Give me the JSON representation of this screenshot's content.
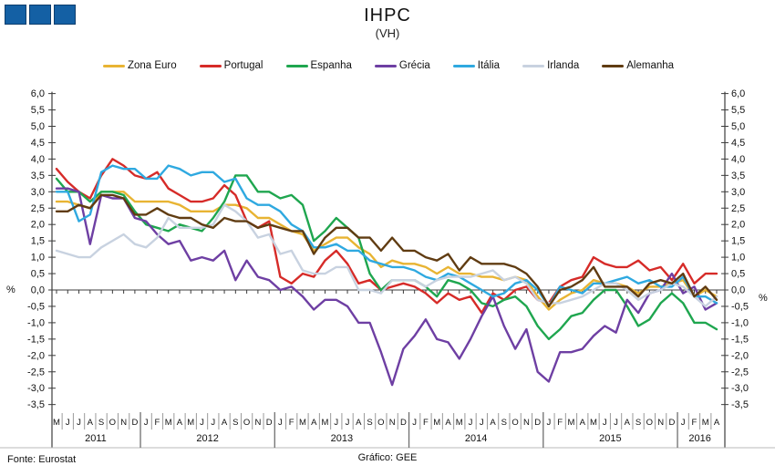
{
  "header": {
    "title": "IHPC",
    "subtitle": "(VH)"
  },
  "axis": {
    "unit_left": "%",
    "unit_right": "%"
  },
  "footer": {
    "source": "Fonte:  Eurostat",
    "credit": "Gráfico: GEE"
  },
  "chart_data": {
    "type": "line",
    "title": "IHPC",
    "subtitle": "(VH)",
    "ylabel": "%",
    "ylim": [
      -3.5,
      6.0
    ],
    "y_step": 0.5,
    "grid": "zero-line-only",
    "legend_position": "top",
    "x_unit": "month",
    "years": [
      {
        "label": "2011",
        "months": [
          "M",
          "J",
          "J",
          "A",
          "S",
          "O",
          "N",
          "D"
        ]
      },
      {
        "label": "2012",
        "months": [
          "J",
          "F",
          "M",
          "A",
          "M",
          "J",
          "J",
          "A",
          "S",
          "O",
          "N",
          "D"
        ]
      },
      {
        "label": "2013",
        "months": [
          "J",
          "F",
          "M",
          "A",
          "M",
          "J",
          "J",
          "A",
          "S",
          "O",
          "N",
          "D"
        ]
      },
      {
        "label": "2014",
        "months": [
          "J",
          "F",
          "M",
          "A",
          "M",
          "J",
          "J",
          "A",
          "S",
          "O",
          "N",
          "D"
        ]
      },
      {
        "label": "2015",
        "months": [
          "J",
          "F",
          "M",
          "A",
          "M",
          "J",
          "J",
          "A",
          "S",
          "O",
          "N",
          "D"
        ]
      },
      {
        "label": "2016",
        "months": [
          "J",
          "F",
          "M",
          "A"
        ]
      }
    ],
    "series": [
      {
        "name": "Zona Euro",
        "color": "#E8B433",
        "values": [
          2.7,
          2.7,
          2.6,
          2.5,
          3.0,
          3.0,
          3.0,
          2.7,
          2.7,
          2.7,
          2.7,
          2.6,
          2.4,
          2.4,
          2.4,
          2.6,
          2.6,
          2.5,
          2.2,
          2.2,
          2.0,
          1.8,
          1.7,
          1.2,
          1.4,
          1.6,
          1.6,
          1.3,
          1.1,
          0.7,
          0.9,
          0.8,
          0.8,
          0.7,
          0.5,
          0.7,
          0.5,
          0.5,
          0.4,
          0.4,
          0.3,
          0.4,
          0.3,
          -0.2,
          -0.6,
          -0.3,
          -0.1,
          0.0,
          0.3,
          0.2,
          0.2,
          0.1,
          -0.1,
          0.1,
          0.1,
          0.2,
          0.3,
          -0.2,
          0.0,
          -0.2
        ]
      },
      {
        "name": "Portugal",
        "color": "#D62B28",
        "values": [
          3.7,
          3.3,
          3.0,
          2.8,
          3.5,
          4.0,
          3.8,
          3.5,
          3.4,
          3.6,
          3.1,
          2.9,
          2.7,
          2.7,
          2.8,
          3.2,
          2.9,
          2.1,
          1.9,
          2.1,
          0.4,
          0.2,
          0.5,
          0.4,
          0.9,
          1.2,
          0.8,
          0.2,
          0.3,
          0.0,
          0.1,
          0.2,
          0.1,
          -0.1,
          -0.4,
          -0.1,
          -0.3,
          -0.2,
          -0.7,
          -0.1,
          -0.3,
          0.0,
          0.1,
          -0.3,
          -0.4,
          0.1,
          0.3,
          0.4,
          1.0,
          0.8,
          0.7,
          0.7,
          0.9,
          0.6,
          0.7,
          0.3,
          0.8,
          0.2,
          0.5,
          0.5
        ]
      },
      {
        "name": "Espanha",
        "color": "#1FA64F",
        "values": [
          3.4,
          3.0,
          3.0,
          2.7,
          3.0,
          3.0,
          2.9,
          2.4,
          2.0,
          1.9,
          1.8,
          2.0,
          1.9,
          1.8,
          2.2,
          2.7,
          3.5,
          3.5,
          3.0,
          3.0,
          2.8,
          2.9,
          2.6,
          1.5,
          1.8,
          2.2,
          1.9,
          1.6,
          0.5,
          0.0,
          0.3,
          0.3,
          0.3,
          0.1,
          -0.2,
          0.3,
          0.2,
          0.0,
          -0.4,
          -0.5,
          -0.3,
          -0.2,
          -0.5,
          -1.1,
          -1.5,
          -1.2,
          -0.8,
          -0.7,
          -0.3,
          0.0,
          0.0,
          -0.5,
          -1.1,
          -0.9,
          -0.4,
          -0.1,
          -0.4,
          -1.0,
          -1.0,
          -1.2
        ]
      },
      {
        "name": "Grécia",
        "color": "#6E3FA3",
        "values": [
          3.1,
          3.1,
          3.0,
          1.4,
          2.9,
          2.8,
          2.8,
          2.2,
          2.1,
          1.7,
          1.4,
          1.5,
          0.9,
          1.0,
          0.9,
          1.2,
          0.3,
          0.9,
          0.4,
          0.3,
          0.0,
          0.1,
          -0.2,
          -0.6,
          -0.3,
          -0.3,
          -0.5,
          -1.0,
          -1.0,
          -1.9,
          -2.9,
          -1.8,
          -1.4,
          -0.9,
          -1.5,
          -1.6,
          -2.1,
          -1.5,
          -0.8,
          -0.2,
          -1.1,
          -1.8,
          -1.2,
          -2.5,
          -2.8,
          -1.9,
          -1.9,
          -1.8,
          -1.4,
          -1.1,
          -1.3,
          -0.3,
          -0.7,
          -0.1,
          0.0,
          0.5,
          -0.1,
          0.1,
          -0.6,
          -0.4
        ]
      },
      {
        "name": "Itália",
        "color": "#2FA9E0",
        "values": [
          3.0,
          3.0,
          2.1,
          2.3,
          3.6,
          3.8,
          3.7,
          3.7,
          3.4,
          3.4,
          3.8,
          3.7,
          3.5,
          3.6,
          3.6,
          3.3,
          3.4,
          2.8,
          2.6,
          2.6,
          2.4,
          2.0,
          1.8,
          1.3,
          1.3,
          1.4,
          1.2,
          1.2,
          0.9,
          0.8,
          0.7,
          0.7,
          0.6,
          0.4,
          0.3,
          0.5,
          0.4,
          0.2,
          0.0,
          -0.2,
          -0.1,
          0.2,
          0.3,
          0.0,
          -0.5,
          0.1,
          0.0,
          -0.1,
          0.2,
          0.2,
          0.3,
          0.4,
          0.2,
          0.3,
          0.1,
          0.1,
          0.4,
          -0.2,
          -0.2,
          -0.4
        ]
      },
      {
        "name": "Irlanda",
        "color": "#C8D2E0",
        "values": [
          1.2,
          1.1,
          1.0,
          1.0,
          1.3,
          1.5,
          1.7,
          1.4,
          1.3,
          1.6,
          2.2,
          1.9,
          1.9,
          1.9,
          2.0,
          2.6,
          2.4,
          2.1,
          1.6,
          1.7,
          1.1,
          1.2,
          0.6,
          0.5,
          0.5,
          0.7,
          0.7,
          0.0,
          0.0,
          -0.1,
          0.3,
          0.3,
          0.3,
          0.1,
          0.3,
          0.4,
          0.4,
          0.4,
          0.5,
          0.6,
          0.3,
          0.4,
          0.2,
          -0.3,
          -0.4,
          -0.4,
          -0.3,
          -0.2,
          0.0,
          0.2,
          0.2,
          0.0,
          -0.3,
          -0.1,
          0.0,
          0.2,
          0.1,
          -0.2,
          -0.5,
          -0.2
        ]
      },
      {
        "name": "Alemanha",
        "color": "#603C12",
        "values": [
          2.4,
          2.4,
          2.6,
          2.5,
          2.9,
          2.9,
          2.8,
          2.3,
          2.3,
          2.5,
          2.3,
          2.2,
          2.2,
          2.0,
          1.9,
          2.2,
          2.1,
          2.1,
          1.9,
          2.0,
          1.9,
          1.8,
          1.8,
          1.1,
          1.6,
          1.9,
          1.9,
          1.6,
          1.6,
          1.2,
          1.6,
          1.2,
          1.2,
          1.0,
          0.9,
          1.1,
          0.6,
          1.0,
          0.8,
          0.8,
          0.8,
          0.7,
          0.5,
          0.1,
          -0.5,
          0.0,
          0.1,
          0.3,
          0.7,
          0.1,
          0.1,
          0.1,
          -0.2,
          0.2,
          0.3,
          0.2,
          0.5,
          -0.2,
          0.1,
          -0.3
        ]
      }
    ]
  }
}
